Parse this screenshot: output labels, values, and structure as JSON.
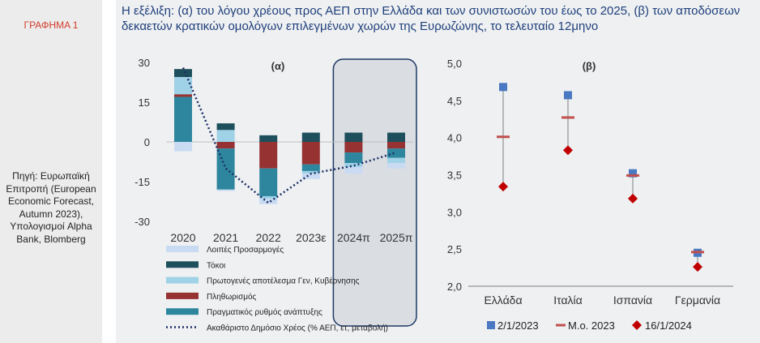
{
  "figure_label": "ΓΡΑΦΗΜΑ 1",
  "title": "Η εξέλιξη: (α) του λόγου χρέους προς ΑΕΠ στην Ελλάδα και των συνιστωσών του έως το 2025, (β) των αποδόσεων δεκαετών κρατικών ομολόγων επιλεγμένων χωρών της Ευρωζώνης, το τελευταίο 12μηνο",
  "source": "Πηγή: Ευρωπαϊκή Επιτροπή (European Economic Forecast, Autumn 2023), Υπολογισμοί Alpha Bank, Blomberg",
  "colors": {
    "other": "#c9dbf2",
    "interest": "#1e4f5c",
    "primary": "#9fd2e6",
    "inflation": "#973233",
    "growth": "#2e869e",
    "debt": "#1c2f66",
    "marker_2023": "#4a78c2",
    "avg_2023": "#c0504d",
    "marker_2024": "#c00000",
    "highlight_border": "#1f3864",
    "highlight_fill": "#dadde2"
  },
  "chart_data": [
    {
      "type": "bar",
      "panel_label": "(α)",
      "categories": [
        "2020",
        "2021",
        "2022",
        "2023ε",
        "2024π",
        "2025π"
      ],
      "ylim": [
        -30,
        30
      ],
      "yticks": [
        30,
        15,
        0,
        -15,
        -30
      ],
      "highlighted_categories": [
        "2024π",
        "2025π"
      ],
      "stack_order_positive": [
        "Πραγματικός ρυθμός ανάπτυξης",
        "Πληθωρισμός",
        "Πρωτογενές αποτέλεσμα Γεν, Κυβέρνησης",
        "Τόκοι"
      ],
      "stack_order_negative": [
        "Πληθωρισμός",
        "Πραγματικός ρυθμός ανάπτυξης",
        "Πρωτογενές αποτέλεσμα Γεν, Κυβέρνησης",
        "Λοιπές Προσαρμογές"
      ],
      "series": [
        {
          "name": "Λοιπές Προσαρμογές",
          "color_key": "other",
          "values": [
            -3.5,
            -0.5,
            -2.0,
            -2.0,
            -2.5,
            -2.0
          ]
        },
        {
          "name": "Τόκοι",
          "color_key": "interest",
          "values": [
            3.0,
            2.5,
            2.5,
            3.5,
            3.5,
            3.5
          ]
        },
        {
          "name": "Πρωτογενές αποτέλεσμα Γεν, Κυβέρνησης",
          "color_key": "primary",
          "values": [
            6.5,
            4.5,
            -1.0,
            -1.0,
            -1.5,
            -2.0
          ]
        },
        {
          "name": "Πληθωρισμός",
          "color_key": "inflation",
          "values": [
            1.0,
            -2.5,
            -10.0,
            -8.5,
            -4.0,
            -2.5
          ]
        },
        {
          "name": "Πραγματικός ρυθμός ανάπτυξης",
          "color_key": "growth",
          "values": [
            17.0,
            -15.5,
            -10.5,
            -2.5,
            -4.0,
            -3.5
          ]
        },
        {
          "name": "Ακαθάριστο Δημόσιο Χρέος (% ΑΕΠ, ετ, μεταβολή)",
          "color_key": "debt",
          "line": true,
          "values": [
            28.0,
            -10.0,
            -23.0,
            -12.0,
            -9.0,
            -4.0
          ]
        }
      ]
    },
    {
      "type": "scatter",
      "panel_label": "(β)",
      "categories": [
        "Ελλάδα",
        "Ιταλία",
        "Ισπανία",
        "Γερμανία"
      ],
      "ylim": [
        2.0,
        5.0
      ],
      "yticks": [
        "5,0",
        "4,5",
        "4,0",
        "3,5",
        "3,0",
        "2,5",
        "2,0"
      ],
      "series": [
        {
          "name": "2/1/2023",
          "color_key": "marker_2023",
          "marker": "square",
          "values": [
            4.68,
            4.57,
            3.52,
            2.45
          ]
        },
        {
          "name": "Μ.ο. 2023",
          "color_key": "avg_2023",
          "marker": "dash",
          "values": [
            4.01,
            4.27,
            3.49,
            2.46
          ]
        },
        {
          "name": "16/1/2024",
          "color_key": "marker_2024",
          "marker": "diamond",
          "values": [
            3.34,
            3.83,
            3.18,
            2.26
          ]
        }
      ]
    }
  ]
}
